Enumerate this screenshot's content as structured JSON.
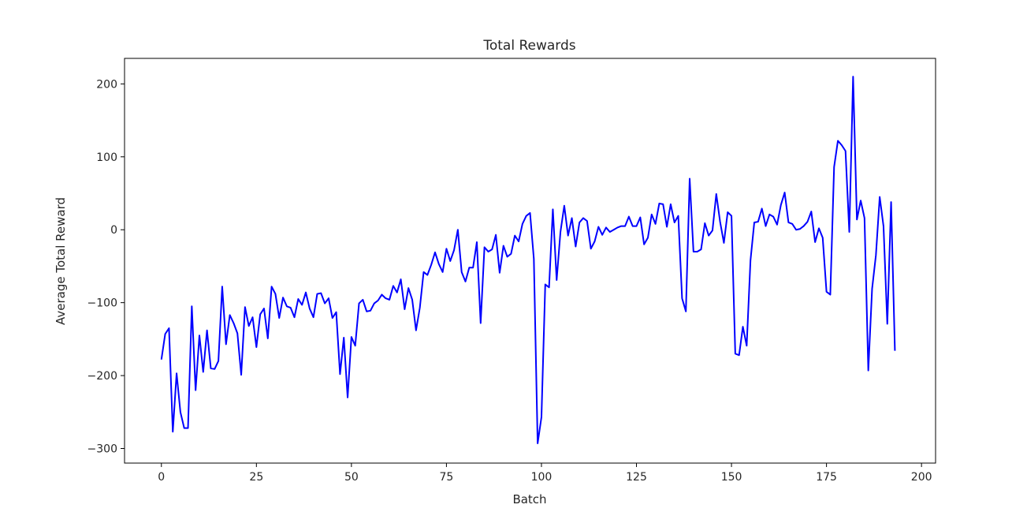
{
  "chart_data": {
    "type": "line",
    "title": "Total Rewards",
    "xlabel": "Batch",
    "ylabel": "Average Total Reward",
    "xlim": [
      -9.7,
      203.7
    ],
    "ylim": [
      -320,
      235
    ],
    "xticks": [
      0,
      25,
      50,
      75,
      100,
      125,
      150,
      175,
      200
    ],
    "yticks": [
      -300,
      -200,
      -100,
      0,
      100,
      200
    ],
    "line_color": "#0000ff",
    "grid": false,
    "series": [
      {
        "values": [
          -178,
          -143,
          -135,
          -277,
          -197,
          -250,
          -272,
          -272,
          -105,
          -220,
          -145,
          -195,
          -138,
          -190,
          -191,
          -180,
          -78,
          -157,
          -117,
          -128,
          -142,
          -199,
          -106,
          -132,
          -120,
          -161,
          -116,
          -108,
          -149,
          -78,
          -88,
          -121,
          -93,
          -105,
          -107,
          -120,
          -95,
          -103,
          -86,
          -108,
          -120,
          -88,
          -87,
          -101,
          -94,
          -121,
          -113,
          -198,
          -148,
          -230,
          -147,
          -159,
          -101,
          -96,
          -112,
          -111,
          -101,
          -97,
          -89,
          -94,
          -96,
          -77,
          -86,
          -68,
          -109,
          -80,
          -96,
          -138,
          -107,
          -58,
          -62,
          -48,
          -31,
          -47,
          -58,
          -26,
          -43,
          -28,
          0,
          -58,
          -71,
          -52,
          -52,
          -17,
          -128,
          -24,
          -30,
          -27,
          -7,
          -59,
          -22,
          -37,
          -33,
          -8,
          -16,
          8,
          19,
          23,
          -40,
          -293,
          -257,
          -75,
          -79,
          28,
          -69,
          -3,
          33,
          -8,
          16,
          -23,
          10,
          16,
          12,
          -26,
          -16,
          4,
          -7,
          3,
          -3,
          0,
          3,
          5,
          5,
          18,
          5,
          5,
          17,
          -20,
          -11,
          21,
          8,
          36,
          35,
          4,
          35,
          10,
          19,
          -94,
          -112,
          70,
          -30,
          -30,
          -27,
          9,
          -8,
          -1,
          49,
          11,
          -18,
          24,
          19,
          -170,
          -172,
          -133,
          -159,
          -42,
          10,
          11,
          29,
          5,
          21,
          18,
          7,
          34,
          51,
          10,
          8,
          0,
          1,
          5,
          11,
          25,
          -17,
          2,
          -11,
          -85,
          -89,
          86,
          122,
          116,
          108,
          -3,
          210,
          14,
          40,
          16,
          -193,
          -81,
          -35,
          45,
          5,
          -129,
          38,
          -166
        ]
      }
    ]
  }
}
